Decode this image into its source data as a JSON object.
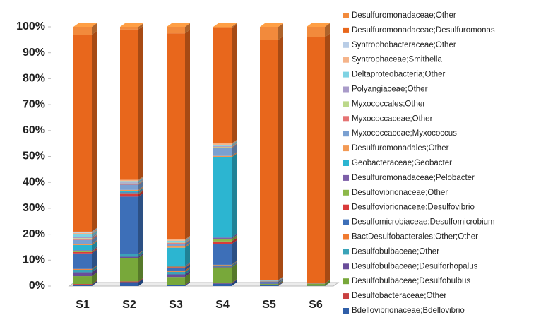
{
  "chart_data": {
    "type": "stacked_bar",
    "categories": [
      "S1",
      "S2",
      "S3",
      "S4",
      "S5",
      "S6"
    ],
    "ylim": [
      0,
      100
    ],
    "yticks": [
      {
        "value": 0,
        "label": "0%"
      },
      {
        "value": 10,
        "label": "10%"
      },
      {
        "value": 20,
        "label": "20%"
      },
      {
        "value": 30,
        "label": "30%"
      },
      {
        "value": 40,
        "label": "40%"
      },
      {
        "value": 50,
        "label": "50%"
      },
      {
        "value": 60,
        "label": "60%"
      },
      {
        "value": 70,
        "label": "70%"
      },
      {
        "value": 80,
        "label": "80%"
      },
      {
        "value": 90,
        "label": "90%"
      },
      {
        "value": 100,
        "label": "100%"
      }
    ],
    "series": [
      {
        "name": "Desulfuromonadaceae;Other",
        "color": "#f28a3c",
        "values": [
          3,
          1,
          2.5,
          0.5,
          5,
          4
        ]
      },
      {
        "name": "Desulfuromonadaceae;Desulfuromonas",
        "color": "#e8671c",
        "values": [
          76,
          58,
          79.5,
          44.5,
          92.7,
          95
        ]
      },
      {
        "name": "Syntrophobacteraceae;Other",
        "color": "#b9cde6",
        "values": [
          0.5,
          0,
          0,
          0,
          0,
          0
        ]
      },
      {
        "name": "Syntrophaceae;Smithella",
        "color": "#f5b48a",
        "values": [
          0.5,
          0.5,
          0.5,
          0.5,
          0,
          0
        ]
      },
      {
        "name": "Deltaproteobacteria;Other",
        "color": "#7fd3e3",
        "values": [
          1,
          0.5,
          0.4,
          0.5,
          0,
          0
        ]
      },
      {
        "name": "Polyangiaceae;Other",
        "color": "#a99bc9",
        "values": [
          0.5,
          0.4,
          0.3,
          0.3,
          0,
          0
        ]
      },
      {
        "name": "Myxococcales;Other",
        "color": "#bcd88a",
        "values": [
          0.2,
          0.2,
          0.2,
          0.2,
          0,
          0
        ]
      },
      {
        "name": "Myxococcaceae;Other",
        "color": "#e57373",
        "values": [
          0.5,
          0.3,
          0.3,
          0.3,
          0,
          0
        ]
      },
      {
        "name": "Myxococcaceae;Myxococcus",
        "color": "#7aa0d1",
        "values": [
          1.5,
          2,
          1,
          3,
          0.2,
          0
        ]
      },
      {
        "name": "Desulfuromonadales;Other",
        "color": "#f39a55",
        "values": [
          0.5,
          0.5,
          0.5,
          0.5,
          0.1,
          0
        ]
      },
      {
        "name": "Geobacteraceae;Geobacter",
        "color": "#2cb5d1",
        "values": [
          2,
          0.5,
          7,
          31,
          0.1,
          0
        ]
      },
      {
        "name": "Desulfuromonadaceae;Pelobacter",
        "color": "#7d5fa8",
        "values": [
          0.4,
          0.3,
          0.3,
          0.5,
          0.1,
          0
        ]
      },
      {
        "name": "Desulfovibrionaceae;Other",
        "color": "#8db84a",
        "values": [
          0.3,
          0.3,
          0.2,
          1,
          0.1,
          0
        ]
      },
      {
        "name": "Desulfovibrionaceae;Desulfovibrio",
        "color": "#d93b3b",
        "values": [
          0.5,
          1,
          0.3,
          1,
          0.1,
          0
        ]
      },
      {
        "name": "Desulfomicrobiaceae;Desulfomicrobium",
        "color": "#3d6fb8",
        "values": [
          6,
          22,
          1,
          8,
          0.3,
          0.1
        ]
      },
      {
        "name": "BactDesulfobacterales;Other;Other",
        "color": "#f07a30",
        "values": [
          0.3,
          0.2,
          0.5,
          0.2,
          0.1,
          0
        ]
      },
      {
        "name": "Desulfobulbaceae;Other",
        "color": "#3aa3b8",
        "values": [
          1,
          1,
          1,
          0.5,
          0.2,
          0
        ]
      },
      {
        "name": "Desulfobulbaceae;Desulforhopalus",
        "color": "#6a4d9a",
        "values": [
          1.5,
          0.5,
          1,
          0.3,
          0.2,
          0
        ]
      },
      {
        "name": "Desulfobulbaceae;Desulfobulbus",
        "color": "#78a83a",
        "values": [
          3,
          9,
          3,
          6,
          0.3,
          0.8
        ]
      },
      {
        "name": "Desulfobacteraceae;Other",
        "color": "#c94040",
        "values": [
          0.3,
          0.3,
          0.2,
          0.2,
          0.2,
          0
        ]
      },
      {
        "name": "Bdellovibrionaceae;Bdellovibrio",
        "color": "#2f5ea8",
        "values": [
          0.5,
          1.5,
          0.3,
          1,
          0.3,
          0.1
        ]
      }
    ]
  }
}
